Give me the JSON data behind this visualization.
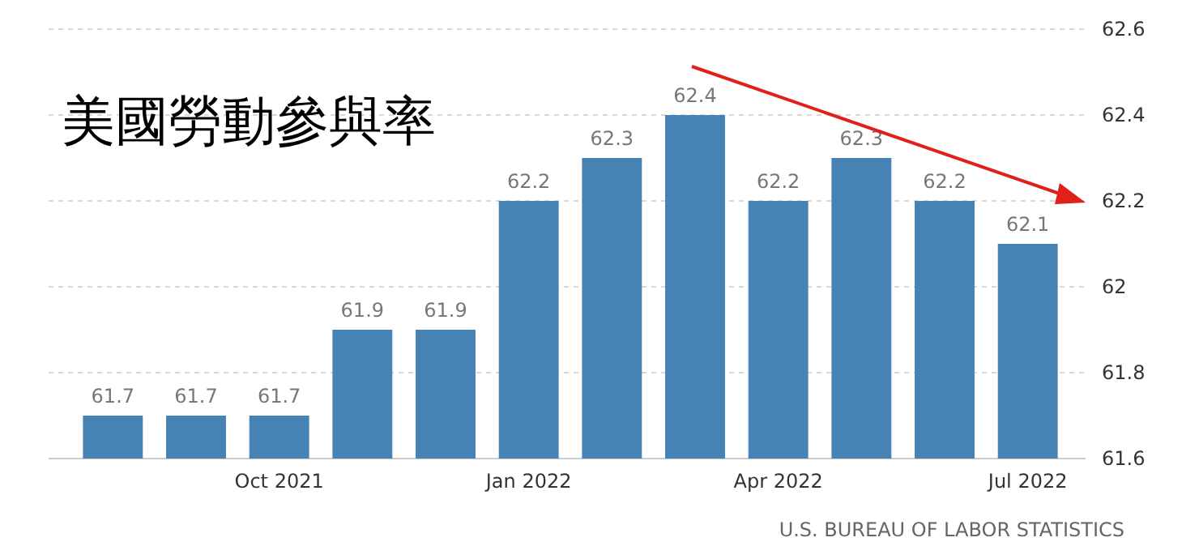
{
  "chart_data": {
    "type": "bar",
    "title": "美國勞動參與率",
    "categories": [
      null,
      null,
      "Oct 2021",
      null,
      null,
      "Jan 2022",
      null,
      null,
      "Apr 2022",
      null,
      null,
      "Jul 2022"
    ],
    "values": [
      61.7,
      61.7,
      61.7,
      61.9,
      61.9,
      62.2,
      62.3,
      62.4,
      62.2,
      62.3,
      62.2,
      62.1
    ],
    "color": "#4682b4",
    "ylim": [
      61.6,
      62.6
    ],
    "yticks": [
      61.6,
      61.8,
      62,
      62.2,
      62.4,
      62.6
    ],
    "grid": "y",
    "data_labels": true,
    "annotations": [
      "U.S. BUREAU OF LABOR STATISTICS"
    ]
  }
}
